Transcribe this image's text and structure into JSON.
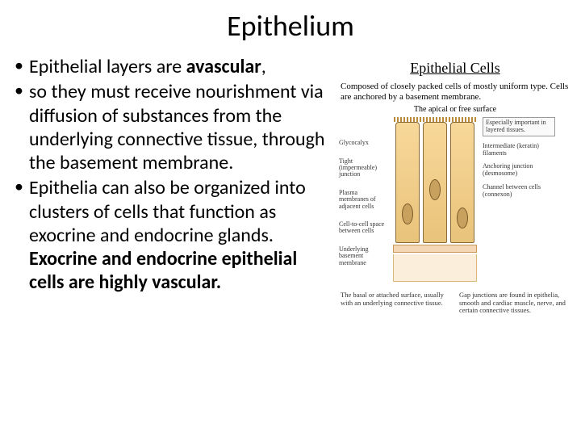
{
  "title": "Epithelium",
  "bullet1_pre": "Epithelial layers are ",
  "bullet1_bold": "avascular",
  "bullet1_post": ",",
  "bullet2": "so they must receive nourishment via diffusion of substances from the underlying connective tissue, through the basement membrane.",
  "bullet3_pre": "Epithelia can also be organized into clusters of cells that function as exocrine and endocrine glands. ",
  "bullet3_bold": "Exocrine and endocrine epithelial cells are highly vascular.",
  "figure": {
    "title": "Epithelial Cells",
    "sub": "Composed of closely packed cells of mostly uniform type. Cells are anchored by a basement membrane.",
    "apical": "The apical or free surface",
    "left_labels": [
      "Glycocalyx",
      "Tight (impermeable) junction",
      "Plasma membranes of adjacent cells",
      "Cell-to-cell space between cells",
      "Underlying basement membrane"
    ],
    "right_labels": [
      "Especially important in layered tissues.",
      "Intermediate (keratin) filaments",
      "Anchoring junction (desmosome)",
      "Channel between cells (connexon)"
    ],
    "bottom_left": "The basal or attached surface, usually with an underlying connective tissue.",
    "bottom_right": "Gap junctions are found in epithelia, smooth and cardiac muscle, nerve, and certain connective tissues.",
    "colors": {
      "cell_fill_top": "#f8d89a",
      "cell_fill_bottom": "#e8c37a",
      "cell_border": "#8a6b3a",
      "nucleus": "#c9a15e",
      "basement": "#f4d7b5",
      "ct": "#fbeeda"
    }
  }
}
